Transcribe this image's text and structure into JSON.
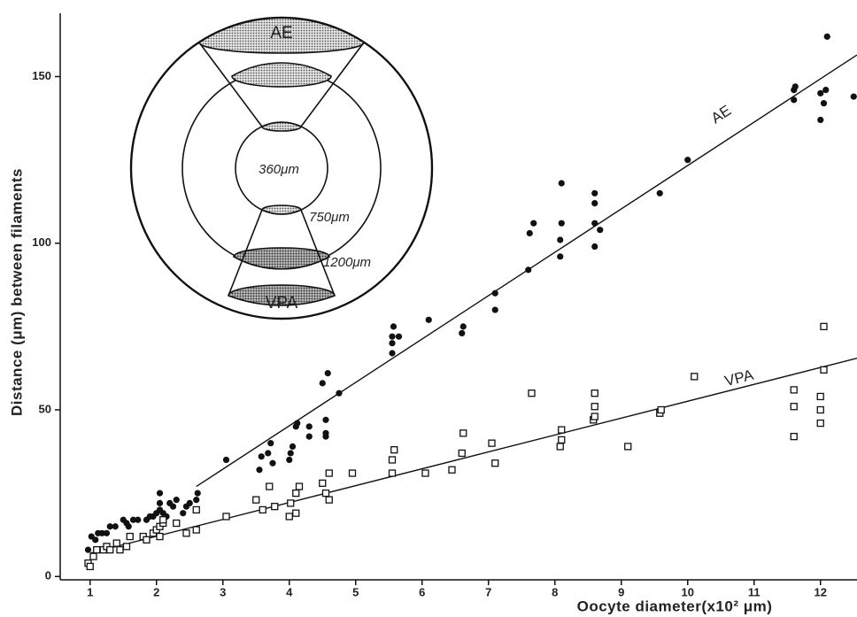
{
  "chart_data": {
    "type": "scatter",
    "x_label": "Oocyte diameter(x10² μm)",
    "y_label": "Distance (μm)  between filaments",
    "xlim": [
      0.55,
      12.55
    ],
    "ylim": [
      -1,
      169
    ],
    "xticks": [
      1,
      2,
      3,
      4,
      5,
      6,
      7,
      8,
      9,
      10,
      11,
      12
    ],
    "yticks": [
      0,
      50,
      100,
      150
    ],
    "series": [
      {
        "name": "AE",
        "marker": "filled-circle",
        "color": "#111111",
        "x": [
          0.97,
          1.02,
          1.08,
          1.12,
          1.18,
          1.25,
          1.3,
          1.38,
          1.5,
          1.55,
          1.58,
          1.65,
          1.72,
          1.85,
          1.9,
          1.95,
          2.0,
          2.05,
          2.05,
          2.05,
          2.1,
          2.15,
          2.2,
          2.25,
          2.3,
          2.4,
          2.45,
          2.5,
          2.6,
          2.62,
          3.05,
          3.55,
          3.58,
          3.68,
          3.72,
          3.75,
          4.0,
          4.02,
          4.05,
          4.1,
          4.12,
          4.3,
          4.3,
          4.55,
          4.55,
          4.55,
          4.5,
          4.58,
          4.75,
          5.55,
          5.55,
          5.55,
          5.57,
          5.65,
          6.1,
          6.6,
          6.62,
          7.1,
          7.1,
          7.6,
          7.62,
          7.68,
          8.08,
          8.08,
          8.1,
          8.1,
          8.6,
          8.6,
          8.6,
          8.6,
          8.68,
          9.58,
          10.0,
          11.6,
          11.6,
          11.62,
          12.0,
          12.0,
          12.05,
          12.08,
          12.1,
          12.5
        ],
        "y": [
          8,
          12,
          11,
          13,
          13,
          13,
          15,
          15,
          17,
          16,
          15,
          17,
          17,
          17,
          18,
          18,
          19,
          20,
          22,
          25,
          19,
          18,
          22,
          21,
          23,
          19,
          21,
          22,
          23,
          25,
          35,
          32,
          36,
          37,
          40,
          34,
          35,
          37,
          39,
          45,
          46,
          42,
          45,
          42,
          43,
          47,
          58,
          61,
          55,
          67,
          70,
          72,
          75,
          72,
          77,
          73,
          75,
          80,
          85,
          92,
          103,
          106,
          96,
          101,
          106,
          118,
          99,
          106,
          112,
          115,
          104,
          115,
          125,
          143,
          146,
          147,
          137,
          145,
          142,
          146,
          162,
          144
        ],
        "fit": {
          "x": [
            2.6,
            12.55
          ],
          "y": [
            27,
            156.5
          ]
        }
      },
      {
        "name": "VPA",
        "marker": "open-square",
        "color": "#111111",
        "x": [
          0.97,
          1.0,
          1.05,
          1.1,
          1.2,
          1.25,
          1.3,
          1.4,
          1.45,
          1.55,
          1.6,
          1.8,
          1.85,
          1.95,
          2.0,
          2.05,
          2.05,
          2.1,
          2.1,
          2.3,
          2.45,
          2.6,
          2.6,
          3.05,
          3.5,
          3.6,
          3.7,
          3.78,
          4.0,
          4.02,
          4.1,
          4.1,
          4.15,
          4.5,
          4.55,
          4.6,
          4.6,
          4.95,
          5.55,
          5.55,
          5.58,
          6.05,
          6.45,
          6.6,
          6.62,
          7.05,
          7.1,
          7.65,
          8.08,
          8.1,
          8.1,
          8.58,
          8.6,
          8.6,
          8.6,
          9.1,
          9.58,
          9.6,
          10.1,
          11.6,
          11.6,
          11.6,
          12.0,
          12.0,
          12.0,
          12.05,
          12.05
        ],
        "y": [
          4,
          3,
          6,
          8,
          8,
          9,
          8,
          10,
          8,
          9,
          12,
          12,
          11,
          13,
          14,
          12,
          15,
          16,
          17,
          16,
          13,
          14,
          20,
          18,
          23,
          20,
          27,
          21,
          18,
          22,
          19,
          25,
          27,
          28,
          25,
          23,
          31,
          31,
          31,
          35,
          38,
          31,
          32,
          37,
          43,
          40,
          34,
          55,
          39,
          41,
          44,
          47,
          48,
          51,
          55,
          39,
          49,
          50,
          60,
          42,
          51,
          56,
          46,
          50,
          54,
          62,
          75
        ],
        "fit": {
          "x": [
            1.0,
            12.55
          ],
          "y": [
            7,
            65.5
          ]
        }
      }
    ],
    "inset": {
      "top_label": "AE",
      "bottom_label": "VPA",
      "inner": "360μm",
      "middle": "750μm",
      "outer": "1200μm"
    }
  }
}
